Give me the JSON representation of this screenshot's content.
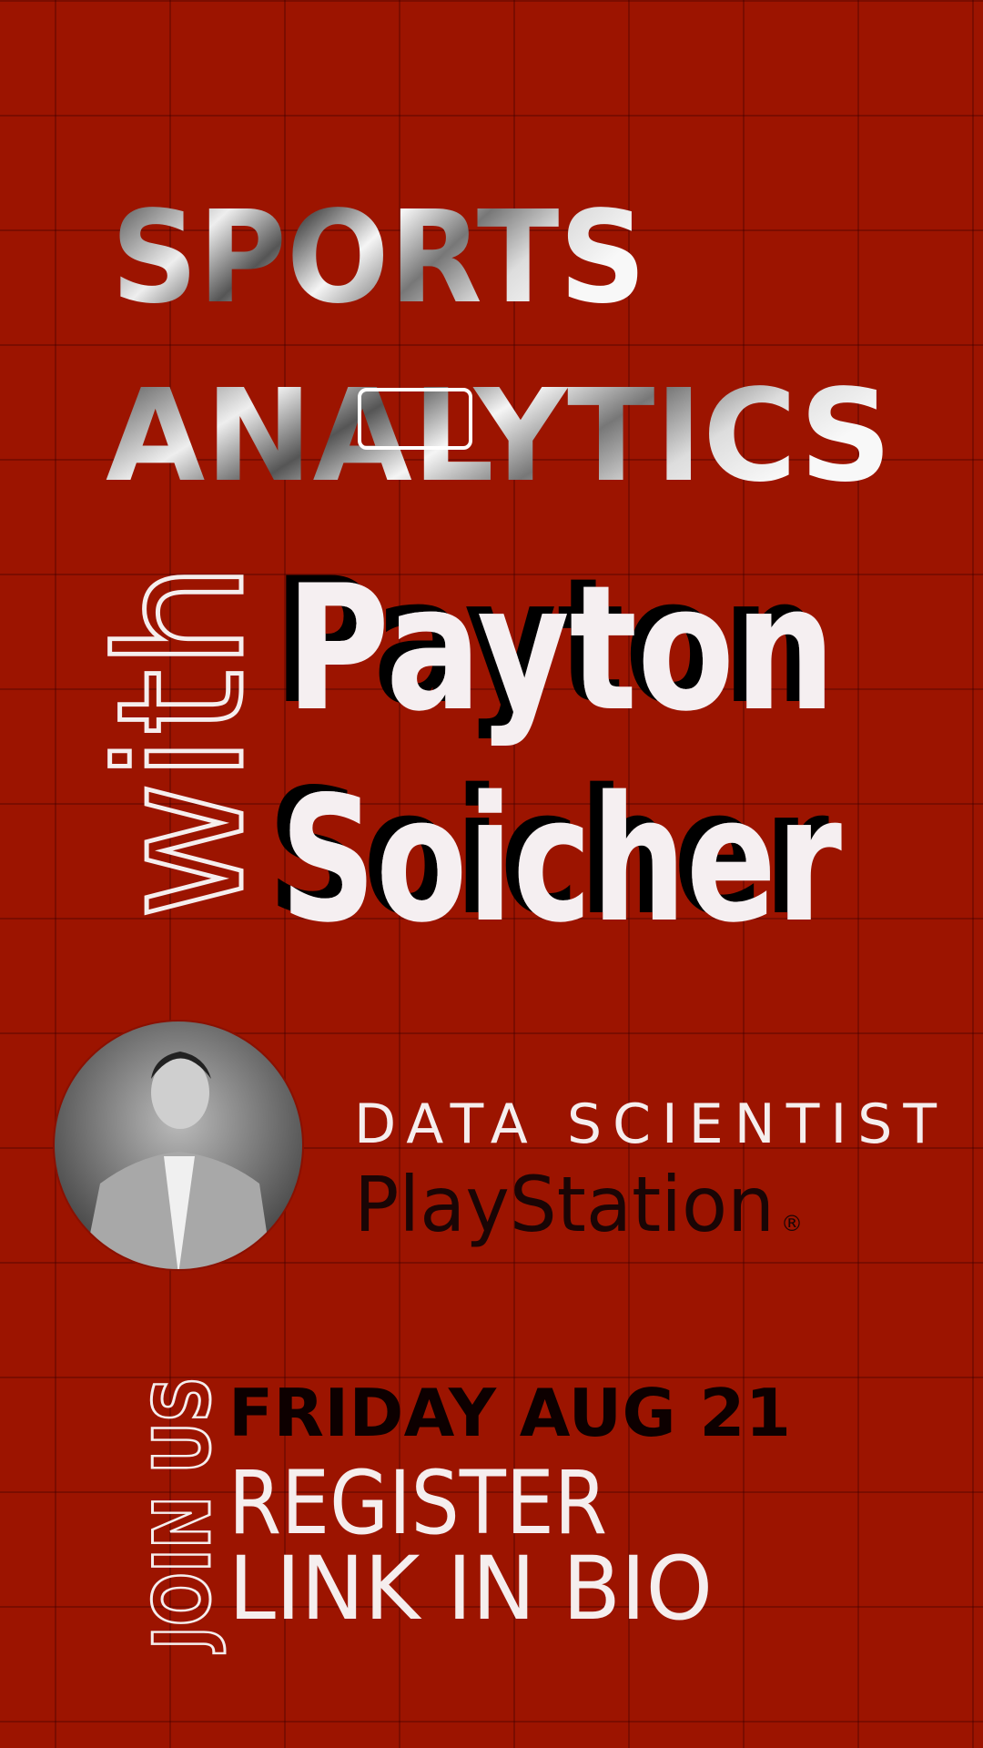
{
  "header": {
    "line1": "SPORTS",
    "line2": "ANALYTICS"
  },
  "speaker": {
    "prefix": "with",
    "first_name": "Payton",
    "last_name": "Soicher",
    "role": "DATA SCIENTIST",
    "company": "PlayStation",
    "company_mark": "®"
  },
  "event": {
    "call": "JOIN US",
    "date": "FRIDAY AUG 21",
    "line1": "REGISTER",
    "line2": "LINK IN BIO"
  }
}
